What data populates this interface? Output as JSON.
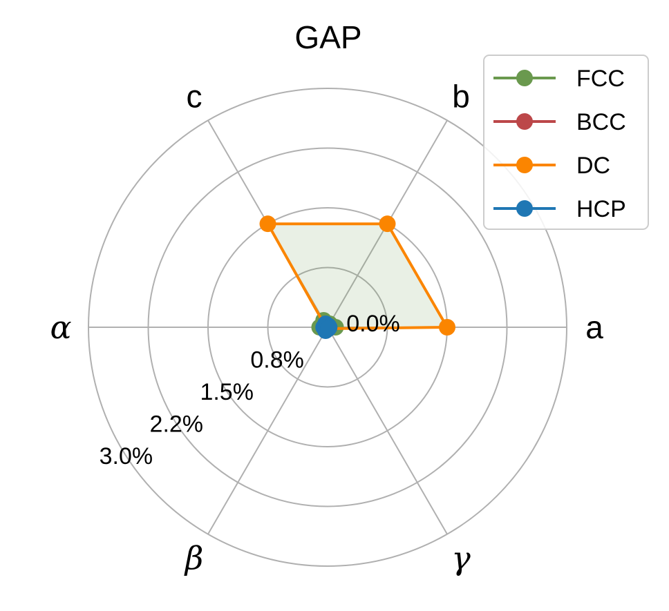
{
  "chart_data": {
    "type": "radar",
    "title": "GAP",
    "axes": [
      "a",
      "b",
      "c",
      "α",
      "β",
      "γ"
    ],
    "radial_ticks": [
      "0.0%",
      "0.8%",
      "1.5%",
      "2.2%",
      "3.0%"
    ],
    "radial_range": [
      0,
      3.0
    ],
    "grid": true,
    "legend_position": "top-right",
    "series": [
      {
        "name": "FCC",
        "color": "#6a994e",
        "values": [
          0.1,
          0.05,
          0.1,
          0.1,
          0.02,
          0.02
        ]
      },
      {
        "name": "BCC",
        "color": "#bc4749",
        "values": [
          0.02,
          0.02,
          0.02,
          0.02,
          0.02,
          0.02
        ]
      },
      {
        "name": "DC",
        "color": "#fb8500",
        "values": [
          1.5,
          1.5,
          1.5,
          0.02,
          0.02,
          0.02
        ],
        "fill": "#6a994e"
      },
      {
        "name": "HCP",
        "color": "#1f77b4",
        "values": [
          0.02,
          0.02,
          0.05,
          0.05,
          0.05,
          0.02
        ]
      }
    ]
  }
}
